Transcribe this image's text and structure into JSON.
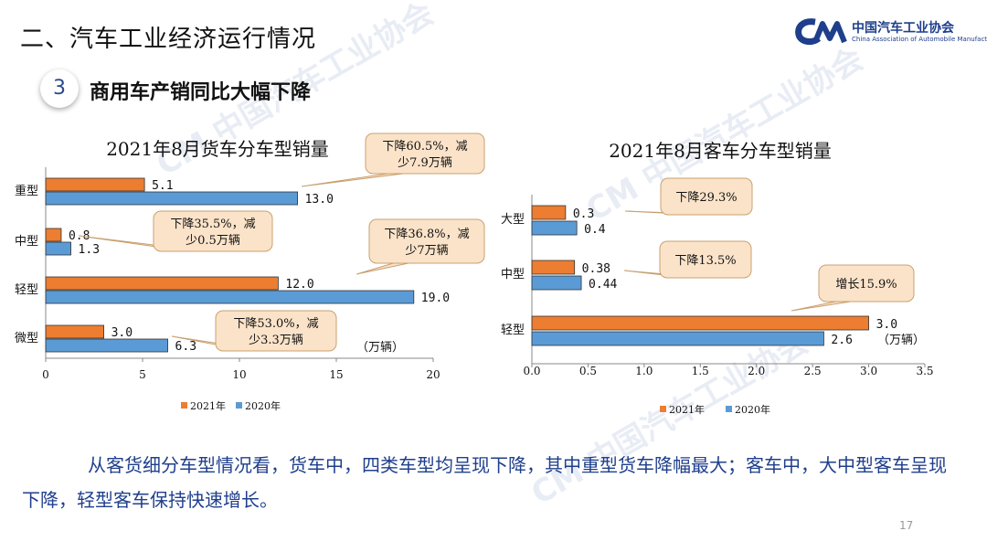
{
  "header": {
    "title": "二、汽车工业经济运行情况",
    "logo_cn": "中国汽车工业协会",
    "logo_en": "China Association of Automobile Manufacturers"
  },
  "section": {
    "number": "3",
    "title": "商用车产销同比大幅下降"
  },
  "summary": "从客货细分车型情况看，货车中，四类车型均呈现下降，其中重型货车降幅最大；客车中，大中型客车呈现下降，轻型客车保持快速增长。",
  "page_number": "17",
  "colors": {
    "y2021": "#ed7d31",
    "y2020": "#5b9bd5",
    "callout_fill": "#fbe3c9",
    "callout_stroke": "#c8a070",
    "text_blue": "#1f3f8c"
  },
  "chart_data": [
    {
      "type": "bar",
      "orientation": "horizontal",
      "title": "2021年8月货车分车型销量",
      "categories": [
        "重型",
        "中型",
        "轻型",
        "微型"
      ],
      "series": [
        {
          "name": "2021年",
          "values": [
            5.1,
            0.8,
            12.0,
            3.0
          ],
          "labels": [
            "5.1",
            "0.8",
            "12.0",
            "3.0"
          ]
        },
        {
          "name": "2020年",
          "values": [
            13.0,
            1.3,
            19.0,
            6.3
          ],
          "labels": [
            "13.0",
            "1.3",
            "19.0",
            "6.3"
          ]
        }
      ],
      "xlim": [
        0,
        20
      ],
      "xticks": [
        "0",
        "5",
        "10",
        "15",
        "20"
      ],
      "unit": "（万辆）",
      "legend_position": "bottom",
      "annotations": [
        {
          "lines": [
            "下降60.5%，减",
            "少7.9万辆"
          ],
          "category": "重型"
        },
        {
          "lines": [
            "下降35.5%，减",
            "少0.5万辆"
          ],
          "category": "中型"
        },
        {
          "lines": [
            "下降36.8%，减",
            "少7万辆"
          ],
          "category": "轻型"
        },
        {
          "lines": [
            "下降53.0%，减",
            "少3.3万辆"
          ],
          "category": "微型"
        }
      ]
    },
    {
      "type": "bar",
      "orientation": "horizontal",
      "title": "2021年8月客车分车型销量",
      "categories": [
        "大型",
        "中型",
        "轻型"
      ],
      "series": [
        {
          "name": "2021年",
          "values": [
            0.3,
            0.38,
            3.0
          ],
          "labels": [
            "0.3",
            "0.38",
            "3.0"
          ]
        },
        {
          "name": "2020年",
          "values": [
            0.4,
            0.44,
            2.6
          ],
          "labels": [
            "0.4",
            "0.44",
            "2.6"
          ]
        }
      ],
      "xlim": [
        0,
        3.5
      ],
      "xticks": [
        "0.0",
        "0.5",
        "1.0",
        "1.5",
        "2.0",
        "2.5",
        "3.0",
        "3.5"
      ],
      "unit": "（万辆）",
      "legend_position": "bottom",
      "annotations": [
        {
          "lines": [
            "下降29.3%"
          ],
          "category": "大型"
        },
        {
          "lines": [
            "下降13.5%"
          ],
          "category": "中型"
        },
        {
          "lines": [
            "增长15.9%"
          ],
          "category": "轻型"
        }
      ]
    }
  ]
}
